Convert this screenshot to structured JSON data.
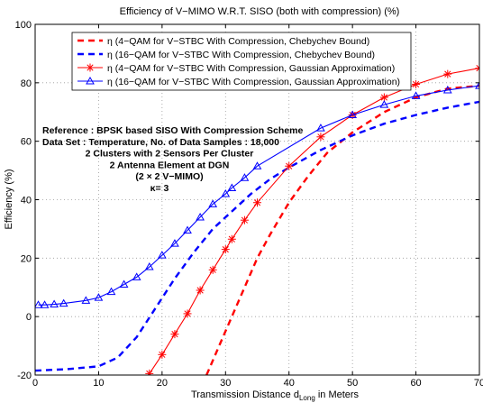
{
  "chart_data": {
    "type": "line",
    "title": "Efficiency of V−MIMO W.R.T. SISO (both with compression) (%)",
    "xlabel_main": "Transmission Distance d",
    "xlabel_sub": "Long",
    "xlabel_tail": " in Meters",
    "ylabel": "Efficiency (%)",
    "xlim": [
      0,
      70
    ],
    "ylim": [
      -20,
      100
    ],
    "xticks": [
      0,
      10,
      20,
      30,
      40,
      50,
      60,
      70
    ],
    "yticks": [
      -20,
      0,
      20,
      40,
      60,
      80,
      100
    ],
    "grid": true,
    "legend_position": "top-right",
    "series": [
      {
        "name": "η  (4−QAM for V−STBC With Compression, Chebychev Bound)",
        "color": "#ff0000",
        "line": "dashed",
        "marker": "none",
        "x": [
          27,
          29,
          31,
          33,
          35,
          37,
          40,
          43,
          46,
          50,
          55,
          60,
          65,
          70
        ],
        "y": [
          -20,
          -10,
          0,
          10,
          20,
          28,
          39,
          48,
          56,
          63,
          70,
          75,
          78,
          79
        ]
      },
      {
        "name": "η  (16−QAM for V−STBC With Compression, Chebychev Bound)",
        "color": "#0000ff",
        "line": "dashed",
        "marker": "none",
        "x": [
          0,
          5,
          10,
          13,
          16,
          19,
          22,
          25,
          28,
          31,
          34,
          37,
          40,
          45,
          50,
          55,
          60,
          65,
          70
        ],
        "y": [
          -18.5,
          -18,
          -17,
          -14,
          -7,
          3,
          13,
          22,
          30,
          36,
          42,
          47,
          51,
          57,
          62,
          66,
          69,
          71.5,
          73.5
        ]
      },
      {
        "name": "η  (4−QAM for V−STBC With Compression, Gaussian Approximation)",
        "color": "#ff0000",
        "line": "solid",
        "marker": "star",
        "x": [
          18,
          20,
          22,
          24,
          26,
          28,
          30,
          31,
          33,
          35,
          40,
          45,
          50,
          55,
          60,
          65,
          70
        ],
        "y": [
          -19.5,
          -13,
          -6,
          1,
          9,
          16,
          23,
          26.5,
          33,
          39,
          51.5,
          61.5,
          69,
          75,
          79.5,
          83,
          85
        ]
      },
      {
        "name": "η  (16−QAM for V−STBC With Compression, Gaussian Approximation)",
        "color": "#0000ff",
        "line": "solid",
        "marker": "triangle",
        "x": [
          0.5,
          1.5,
          3,
          4.5,
          8,
          10,
          12,
          14,
          16,
          18,
          20,
          22,
          24,
          26,
          28,
          30,
          31,
          33,
          35,
          45,
          50,
          55,
          60,
          65,
          70
        ],
        "y": [
          4,
          4,
          4.2,
          4.5,
          5.5,
          6.5,
          8.5,
          11,
          13.5,
          17,
          21,
          25,
          29.5,
          34,
          38.5,
          42,
          44,
          47.5,
          51.5,
          64.5,
          69,
          72.5,
          75.5,
          77.5,
          79
        ]
      }
    ],
    "annotations": [
      "Reference : BPSK based SISO With Compression Scheme",
      "Data Set : Temperature, No. of Data Samples : 18,000",
      "2 Clusters with 2 Sensors Per Cluster",
      "2 Antenna Element at DGN",
      "(2 × 2 V−MIMO)",
      "κ= 3"
    ]
  }
}
